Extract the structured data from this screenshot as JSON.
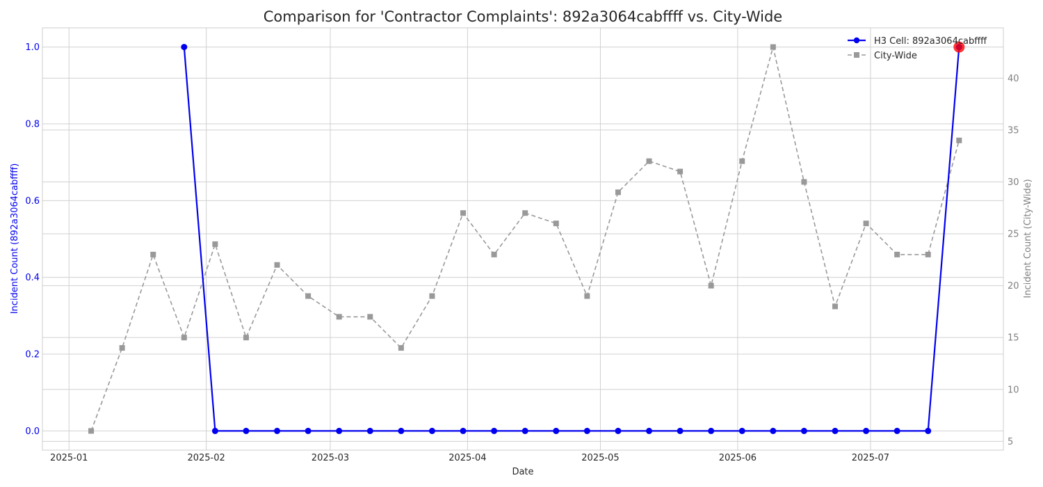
{
  "chart_data": {
    "type": "line",
    "title": "Comparison for 'Contractor Complaints': 892a3064cabffff vs. City-Wide",
    "xlabel": "Date",
    "ylabel_left": "Incident Count (892a3064cabffff)",
    "ylabel_right": "Incident Count (City-Wide)",
    "x_ticks": [
      "2025-01",
      "2025-02",
      "2025-03",
      "2025-04",
      "2025-05",
      "2025-06",
      "2025-07"
    ],
    "x_tick_dates": [
      "2025-01-01",
      "2025-02-01",
      "2025-03-01",
      "2025-04-01",
      "2025-05-01",
      "2025-06-01",
      "2025-07-01"
    ],
    "x_range": [
      "2024-12-26",
      "2025-07-31"
    ],
    "y_left_ticks": [
      "0.0",
      "0.2",
      "0.4",
      "0.6",
      "0.8",
      "1.0"
    ],
    "y_left_range": [
      -0.05,
      1.05
    ],
    "y_right_ticks": [
      "5",
      "10",
      "15",
      "20",
      "25",
      "30",
      "35",
      "40"
    ],
    "y_right_range": [
      4.15,
      44.85
    ],
    "grid": true,
    "legend_position": "top-right",
    "colors": {
      "cell": "#0000ee",
      "city": "#999999",
      "highlight": "#ff0000",
      "left_axis": "#0000ee",
      "right_axis": "#808080"
    },
    "series": [
      {
        "name": "H3 Cell: 892a3064cabffff",
        "axis": "left",
        "x": [
          "2025-01-27",
          "2025-02-03",
          "2025-02-10",
          "2025-02-17",
          "2025-02-24",
          "2025-03-03",
          "2025-03-10",
          "2025-03-17",
          "2025-03-24",
          "2025-03-31",
          "2025-04-07",
          "2025-04-14",
          "2025-04-21",
          "2025-04-28",
          "2025-05-05",
          "2025-05-12",
          "2025-05-19",
          "2025-05-26",
          "2025-06-02",
          "2025-06-09",
          "2025-06-16",
          "2025-06-23",
          "2025-06-30",
          "2025-07-07",
          "2025-07-14",
          "2025-07-21"
        ],
        "values": [
          1,
          0,
          0,
          0,
          0,
          0,
          0,
          0,
          0,
          0,
          0,
          0,
          0,
          0,
          0,
          0,
          0,
          0,
          0,
          0,
          0,
          0,
          0,
          0,
          0,
          1
        ],
        "highlight_index": 25
      },
      {
        "name": "City-Wide",
        "axis": "right",
        "x": [
          "2025-01-06",
          "2025-01-13",
          "2025-01-20",
          "2025-01-27",
          "2025-02-03",
          "2025-02-10",
          "2025-02-17",
          "2025-02-24",
          "2025-03-03",
          "2025-03-10",
          "2025-03-17",
          "2025-03-24",
          "2025-03-31",
          "2025-04-07",
          "2025-04-14",
          "2025-04-21",
          "2025-04-28",
          "2025-05-05",
          "2025-05-12",
          "2025-05-19",
          "2025-05-26",
          "2025-06-02",
          "2025-06-09",
          "2025-06-16",
          "2025-06-23",
          "2025-06-30",
          "2025-07-07",
          "2025-07-14",
          "2025-07-21"
        ],
        "values": [
          6,
          14,
          23,
          15,
          24,
          15,
          22,
          19,
          17,
          17,
          14,
          19,
          27,
          23,
          27,
          26,
          19,
          29,
          32,
          31,
          20,
          32,
          43,
          30,
          18,
          26,
          23,
          23,
          34
        ]
      }
    ]
  }
}
